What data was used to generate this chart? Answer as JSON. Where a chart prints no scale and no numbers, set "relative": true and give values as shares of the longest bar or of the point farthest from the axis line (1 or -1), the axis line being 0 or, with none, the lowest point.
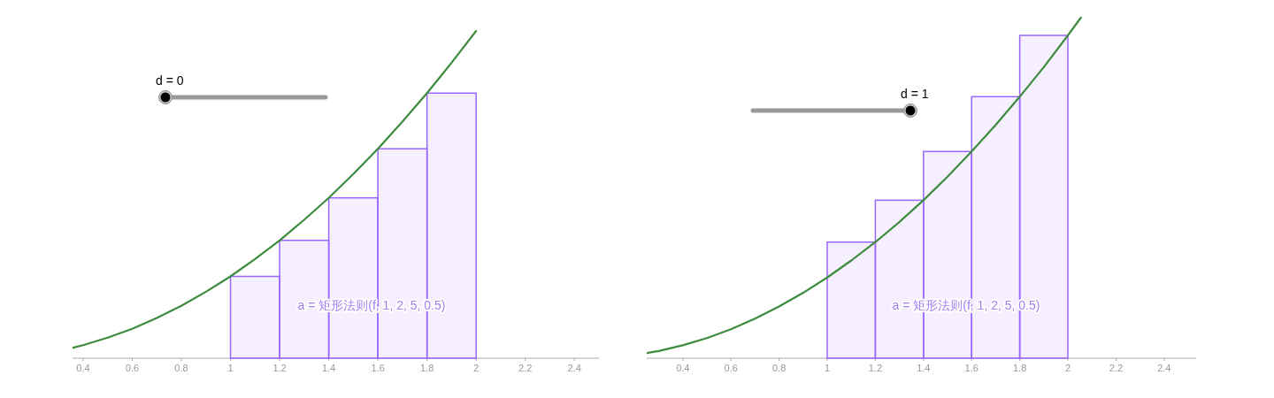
{
  "chart_data": [
    {
      "type": "line",
      "relative": true,
      "xlim": [
        0.357,
        2.5
      ],
      "xticks": [
        0.4,
        0.6,
        0.8,
        1,
        1.2,
        1.4,
        1.6,
        1.8,
        2,
        2.2,
        2.4
      ],
      "annotations": [
        "d = 0",
        "a = 矩形法则(f, 1, 2, 5, 0.5)"
      ],
      "series": [
        {
          "color": "#3d8b3d",
          "x": [
            0.36,
            0.4,
            0.5,
            0.6,
            0.7,
            0.8,
            0.9,
            1.0,
            1.1,
            1.2,
            1.3,
            1.4,
            1.5,
            1.6,
            1.7,
            1.8,
            1.9,
            2.0
          ],
          "values": [
            0.032,
            0.04,
            0.063,
            0.09,
            0.123,
            0.16,
            0.203,
            0.25,
            0.303,
            0.36,
            0.423,
            0.49,
            0.563,
            0.64,
            0.723,
            0.81,
            0.903,
            1
          ]
        },
        {
          "type": "histogram",
          "color": "#9966ff",
          "bins": [
            1,
            1.2,
            1.4,
            1.6,
            1.8,
            2
          ],
          "values": [
            0.25,
            0.36,
            0.49,
            0.64,
            0.81
          ]
        }
      ]
    },
    {
      "type": "line",
      "relative": true,
      "xlim": [
        0.25,
        2.533
      ],
      "xticks": [
        0.4,
        0.6,
        0.8,
        1,
        1.2,
        1.4,
        1.6,
        1.8,
        2,
        2.2,
        2.4
      ],
      "annotations": [
        "d = 1",
        "a = 矩形法则(f, 1, 2, 5, 0.5)"
      ],
      "series": [
        {
          "color": "#3d8b3d",
          "x": [
            0.25,
            0.3,
            0.4,
            0.5,
            0.6,
            0.7,
            0.8,
            0.9,
            1.0,
            1.1,
            1.2,
            1.3,
            1.4,
            1.5,
            1.6,
            1.7,
            1.8,
            1.9,
            2.0,
            2.054
          ],
          "values": [
            0.015,
            0.021,
            0.038,
            0.059,
            0.085,
            0.116,
            0.152,
            0.192,
            0.237,
            0.287,
            0.341,
            0.4,
            0.464,
            0.533,
            0.607,
            0.685,
            0.768,
            0.855,
            0.948,
            1
          ]
        },
        {
          "type": "histogram",
          "color": "#9966ff",
          "bins": [
            1,
            1.2,
            1.4,
            1.6,
            1.8,
            2
          ],
          "values": [
            0.341,
            0.464,
            0.607,
            0.768,
            0.948
          ]
        }
      ]
    }
  ]
}
